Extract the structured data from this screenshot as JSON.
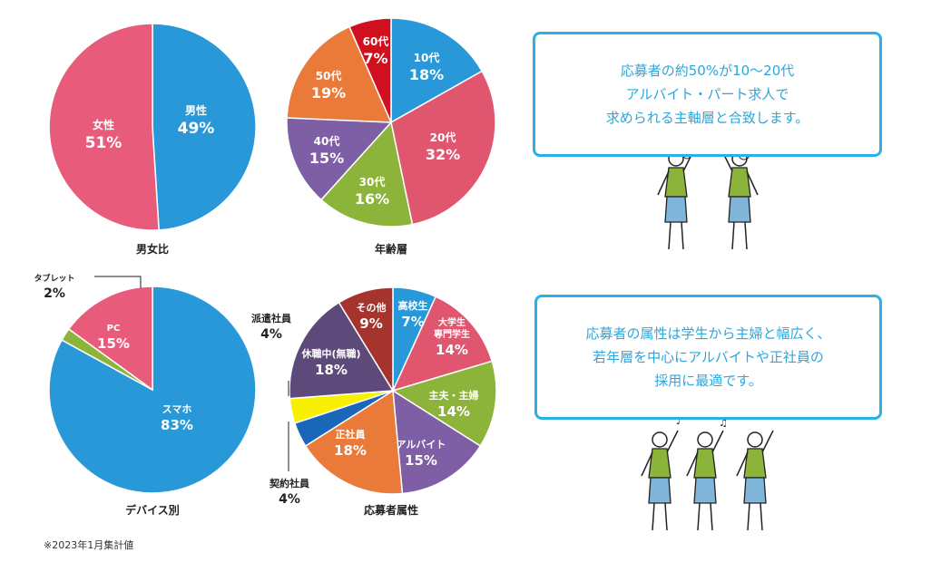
{
  "chart_data": [
    {
      "type": "pie",
      "title": "男女比",
      "series": [
        {
          "label": [
            "男性"
          ],
          "value": 49,
          "color": "#2998d8"
        },
        {
          "label": [
            "女性"
          ],
          "value": 51,
          "color": "#e95b7b"
        }
      ]
    },
    {
      "type": "pie",
      "title": "年齢層",
      "series": [
        {
          "label": [
            "10代"
          ],
          "value": 18,
          "color": "#2998d8"
        },
        {
          "label": [
            "20代"
          ],
          "value": 32,
          "color": "#e0566f"
        },
        {
          "label": [
            "30代"
          ],
          "value": 16,
          "color": "#8db43a"
        },
        {
          "label": [
            "40代"
          ],
          "value": 15,
          "color": "#7e5ea4"
        },
        {
          "label": [
            "50代"
          ],
          "value": 19,
          "color": "#ea7a3a"
        },
        {
          "label": [
            "60代"
          ],
          "value": 7,
          "color": "#d0101e"
        }
      ]
    },
    {
      "type": "pie",
      "title": "デバイス別",
      "series": [
        {
          "label": [
            "スマホ"
          ],
          "value": 83,
          "color": "#2998d8"
        },
        {
          "label": [
            "タブレット"
          ],
          "value": 2,
          "color": "#8db43a"
        },
        {
          "label": [
            "PC"
          ],
          "value": 15,
          "color": "#e95b7b"
        }
      ]
    },
    {
      "type": "pie",
      "title": "応募者属性",
      "series": [
        {
          "label": [
            "高校生"
          ],
          "value": 7,
          "color": "#2998d8"
        },
        {
          "label": [
            "大学生",
            "専門学生"
          ],
          "value": 14,
          "color": "#e0566f"
        },
        {
          "label": [
            "主夫・主婦"
          ],
          "value": 14,
          "color": "#8db43a"
        },
        {
          "label": [
            "アルバイト"
          ],
          "value": 15,
          "color": "#7e5ea4"
        },
        {
          "label": [
            "正社員"
          ],
          "value": 18,
          "color": "#ea7a3a"
        },
        {
          "label": [
            "契約社員"
          ],
          "value": 4,
          "color": "#1a66b8"
        },
        {
          "label": [
            "派遣社員"
          ],
          "value": 4,
          "color": "#f7f000"
        },
        {
          "label": [
            "休職中(無職)"
          ],
          "value": 18,
          "color": "#5d4a7a"
        },
        {
          "label": [
            "その他"
          ],
          "value": 9,
          "color": "#a6342e"
        }
      ]
    }
  ],
  "callouts": {
    "top": [
      "応募者の約50%が10〜20代",
      "アルバイト・パート求人で",
      "求められる主軸層と合致します。"
    ],
    "bottom": [
      "応募者の属性は学生から主婦と幅広く、",
      "若年層を中心にアルバイトや正社員の",
      "採用に最適です。"
    ]
  },
  "footnote": "※2023年1月集計値"
}
